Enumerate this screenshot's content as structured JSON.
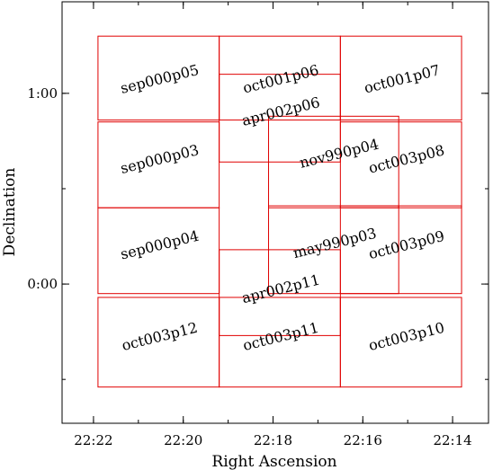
{
  "chart_data": {
    "type": "scatter",
    "xlabel": "Right Ascension",
    "ylabel": "Declination",
    "x_ticks": [
      "22:14",
      "22:16",
      "22:18",
      "22:20",
      "22:22"
    ],
    "y_ticks": [
      "1:00",
      "0:00"
    ],
    "xlim_minutes": [
      22.7,
      13.2
    ],
    "ylim_degrees": [
      -0.73,
      1.48
    ],
    "field_color": "#e00000",
    "fields": [
      {
        "name": "oct001p07",
        "ra": [
          13.8,
          16.5
        ],
        "dec": [
          0.86,
          1.3
        ],
        "label_pos": [
          15.1,
          1.05
        ]
      },
      {
        "name": "oct001p06",
        "ra": [
          16.5,
          19.2
        ],
        "dec": [
          0.86,
          1.3
        ],
        "label_pos": [
          17.8,
          1.05
        ]
      },
      {
        "name": "sep000p05",
        "ra": [
          19.2,
          21.9
        ],
        "dec": [
          0.86,
          1.3
        ],
        "label_pos": [
          20.5,
          1.05
        ]
      },
      {
        "name": "apr002p06",
        "ra": [
          16.5,
          19.2
        ],
        "dec": [
          0.64,
          1.1
        ],
        "label_pos": [
          17.8,
          0.88
        ]
      },
      {
        "name": "oct003p08",
        "ra": [
          13.8,
          16.5
        ],
        "dec": [
          0.4,
          0.85
        ],
        "label_pos": [
          15.0,
          0.63
        ]
      },
      {
        "name": "nov990p04",
        "ra": [
          15.2,
          18.1
        ],
        "dec": [
          0.4,
          0.88
        ],
        "label_pos": [
          16.5,
          0.66
        ]
      },
      {
        "name": "sep000p03",
        "ra": [
          19.2,
          21.9
        ],
        "dec": [
          0.4,
          0.85
        ],
        "label_pos": [
          20.5,
          0.63
        ]
      },
      {
        "name": "oct003p09",
        "ra": [
          13.8,
          16.5
        ],
        "dec": [
          -0.05,
          0.41
        ],
        "label_pos": [
          15.0,
          0.18
        ]
      },
      {
        "name": "may990p03",
        "ra": [
          15.2,
          18.1
        ],
        "dec": [
          -0.05,
          0.41
        ],
        "label_pos": [
          16.6,
          0.19
        ]
      },
      {
        "name": "sep000p04",
        "ra": [
          19.2,
          21.9
        ],
        "dec": [
          -0.05,
          0.4
        ],
        "label_pos": [
          20.5,
          0.18
        ]
      },
      {
        "name": "apr002p11",
        "ra": [
          16.5,
          19.2
        ],
        "dec": [
          -0.27,
          0.18
        ],
        "label_pos": [
          17.8,
          -0.05
        ]
      },
      {
        "name": "oct003p10",
        "ra": [
          13.8,
          16.5
        ],
        "dec": [
          -0.54,
          -0.07
        ],
        "label_pos": [
          15.0,
          -0.3
        ]
      },
      {
        "name": "oct003p11",
        "ra": [
          16.5,
          19.2
        ],
        "dec": [
          -0.54,
          -0.07
        ],
        "label_pos": [
          17.8,
          -0.3
        ]
      },
      {
        "name": "oct003p12",
        "ra": [
          19.2,
          21.9
        ],
        "dec": [
          -0.54,
          -0.07
        ],
        "label_pos": [
          20.5,
          -0.3
        ]
      }
    ]
  }
}
